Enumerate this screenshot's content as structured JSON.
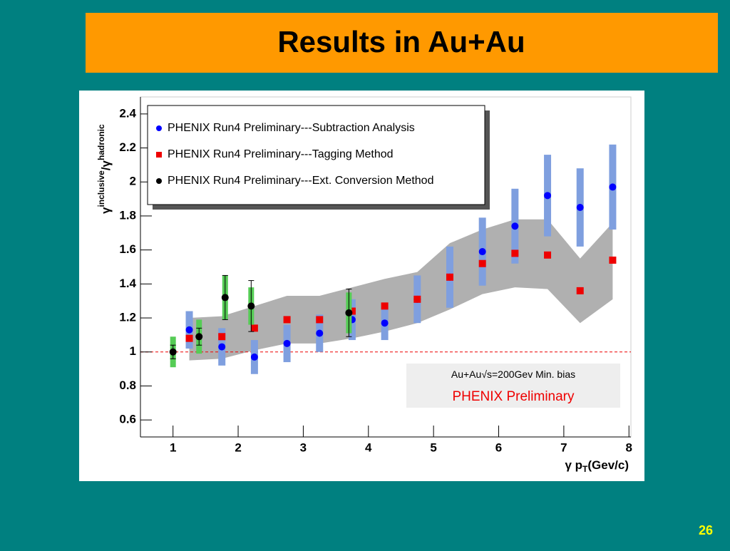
{
  "slide_title": "Results in Au+Au",
  "page_number": "26",
  "chart_data": {
    "type": "errorbar",
    "xlabel_parts": [
      "γ p",
      "T",
      "(Gev/c)"
    ],
    "ylabel_parts": [
      "γ",
      "inclusive",
      "/γ",
      "hadronic"
    ],
    "xlim": [
      0.5,
      8.03
    ],
    "ylim": [
      0.5,
      2.5
    ],
    "xticks": [
      1,
      2,
      3,
      4,
      5,
      6,
      7,
      8
    ],
    "yticks": [
      0.6,
      0.8,
      1,
      1.2,
      1.4,
      1.6,
      1.8,
      2,
      2.2,
      2.4
    ],
    "reference_line": 1,
    "legend_position": "upper left",
    "series": [
      {
        "name": "PHENIX Run4 Preliminary---Subtraction Analysis",
        "color": "#0000ff",
        "error_color": "#7f9fdf",
        "marker": "circle",
        "x": [
          1.25,
          1.75,
          2.25,
          2.75,
          3.25,
          3.75,
          4.25,
          4.75,
          5.25,
          5.75,
          6.25,
          6.75,
          7.25,
          7.75
        ],
        "values": [
          1.13,
          1.03,
          0.97,
          1.05,
          1.11,
          1.19,
          1.17,
          1.31,
          1.44,
          1.59,
          1.74,
          1.92,
          1.85,
          1.97
        ],
        "errors": [
          0.11,
          0.11,
          0.1,
          0.11,
          0.11,
          0.12,
          0.1,
          0.14,
          0.18,
          0.2,
          0.22,
          0.24,
          0.23,
          0.25
        ]
      },
      {
        "name": "PHENIX Run4 Preliminary---Tagging Method",
        "color": "#ee0000",
        "marker": "square",
        "x": [
          1.25,
          1.75,
          2.25,
          2.75,
          3.25,
          3.75,
          4.25,
          4.75,
          5.25,
          5.75,
          6.25,
          6.75,
          7.25,
          7.75
        ],
        "values": [
          1.08,
          1.09,
          1.14,
          1.19,
          1.19,
          1.24,
          1.27,
          1.31,
          1.44,
          1.52,
          1.58,
          1.57,
          1.36,
          1.54
        ]
      },
      {
        "name": "PHENIX Run4 Preliminary---Ext. Conversion Method",
        "color": "#000000",
        "error_color": "#55cc55",
        "marker": "circle",
        "x": [
          1.0,
          1.4,
          1.8,
          2.2,
          3.7
        ],
        "values": [
          1.0,
          1.09,
          1.32,
          1.27,
          1.23
        ],
        "errors": [
          0.04,
          0.05,
          0.13,
          0.15,
          0.14
        ],
        "sys_errors": [
          0.09,
          0.1,
          0.13,
          0.11,
          0.12
        ]
      }
    ],
    "band": {
      "color": "#b0b0b0",
      "x": [
        1.25,
        1.75,
        2.25,
        2.75,
        3.25,
        3.75,
        4.25,
        4.75,
        5.25,
        5.75,
        6.25,
        6.75,
        7.25,
        7.75
      ],
      "high": [
        1.2,
        1.21,
        1.27,
        1.33,
        1.33,
        1.38,
        1.43,
        1.47,
        1.64,
        1.72,
        1.78,
        1.78,
        1.55,
        1.76
      ],
      "low": [
        0.95,
        0.96,
        1.01,
        1.05,
        1.05,
        1.08,
        1.12,
        1.17,
        1.25,
        1.34,
        1.38,
        1.37,
        1.17,
        1.31
      ]
    },
    "annotation": {
      "system": "Au+Au",
      "energy": "√s=200Gev Min. bias",
      "label": "PHENIX Preliminary"
    }
  }
}
